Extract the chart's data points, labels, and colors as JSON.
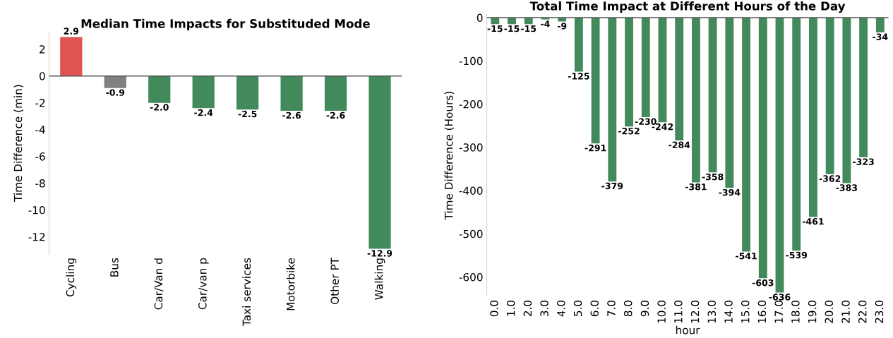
{
  "chart_data": [
    {
      "type": "bar",
      "title": "Median Time Impacts for Substituded Mode",
      "ylabel": "Time Difference (min)",
      "categories": [
        "Cycling",
        "Bus",
        "Car/Van d",
        "Car/van p",
        "Taxi services",
        "Motorbike",
        "Other PT",
        "Walking"
      ],
      "values": [
        2.9,
        -0.9,
        -2.0,
        -2.4,
        -2.5,
        -2.6,
        -2.6,
        -12.9
      ],
      "colors": [
        "#e05353",
        "#808080",
        "#428a5c",
        "#428a5c",
        "#428a5c",
        "#428a5c",
        "#428a5c",
        "#428a5c"
      ],
      "value_labels": [
        "2.9",
        "-0.9",
        "-2.0",
        "-2.4",
        "-2.5",
        "-2.6",
        "-2.6",
        "-12.9"
      ],
      "ylim": [
        -13.3,
        3.3
      ],
      "yticks": [
        2,
        0,
        -2,
        -4,
        -6,
        -8,
        -10,
        -12
      ],
      "ref_lines": [
        {
          "axis": "y",
          "value": 0,
          "color": "#555555"
        }
      ],
      "grid": false
    },
    {
      "type": "bar",
      "title": "Total Time Impact at Different Hours of the Day",
      "xlabel": "hour",
      "ylabel": "Time Difference (Hours)",
      "categories": [
        "0.0",
        "1.0",
        "2.0",
        "3.0",
        "4.0",
        "5.0",
        "6.0",
        "7.0",
        "8.0",
        "9.0",
        "10.0",
        "11.0",
        "12.0",
        "13.0",
        "14.0",
        "15.0",
        "16.0",
        "17.0",
        "18.0",
        "19.0",
        "20.0",
        "21.0",
        "22.0",
        "23.0"
      ],
      "values": [
        -15,
        -15,
        -15,
        -4,
        -9,
        -125,
        -291,
        -379,
        -252,
        -230,
        -242,
        -284,
        -381,
        -358,
        -394,
        -541,
        -603,
        -636,
        -539,
        -461,
        -362,
        -383,
        -323,
        -34
      ],
      "color": "#428a5c",
      "data_labels": true,
      "ylim": [
        -645,
        8
      ],
      "yticks": [
        0,
        -100,
        -200,
        -300,
        -400,
        -500,
        -600
      ],
      "ref_lines": [
        {
          "axis": "y",
          "value": 0,
          "color": "#555555"
        }
      ],
      "grid": false
    }
  ]
}
